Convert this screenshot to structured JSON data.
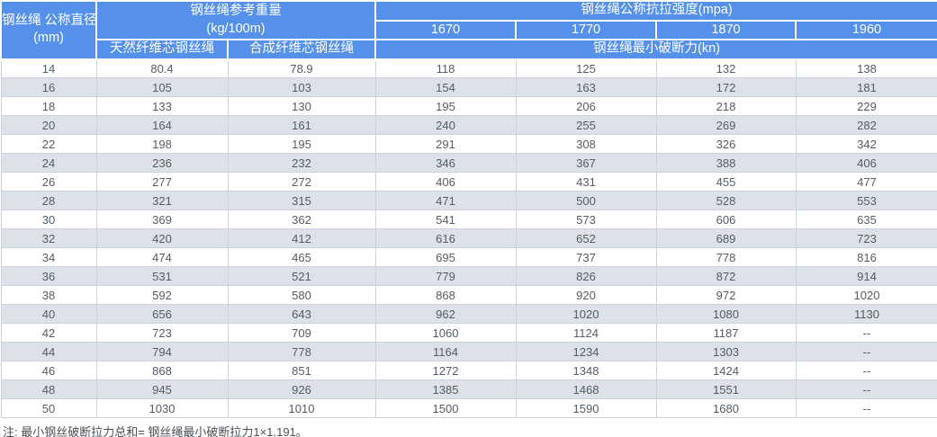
{
  "table": {
    "header": {
      "diameter_label": "钢丝绳 公称直径",
      "diameter_unit": "(mm)",
      "weight_group_label": "钢丝绳参考重量",
      "weight_group_unit": "(kg/100m)",
      "weight_cols": [
        "天然纤维芯钢丝绳",
        "合成纤维芯钢丝绳"
      ],
      "strength_group_label": "钢丝绳公称抗拉强度(mpa)",
      "strength_values": [
        "1670",
        "1770",
        "1870",
        "1960"
      ],
      "breaking_force_label": "钢丝绳最小破断力(kn)"
    },
    "columns": [
      "直径(mm)",
      "天然纤维芯钢丝绳(kg/100m)",
      "合成纤维芯钢丝绳(kg/100m)",
      "1670mpa最小破断力(kn)",
      "1770mpa最小破断力(kn)",
      "1870mpa最小破断力(kn)",
      "1960mpa最小破断力(kn)"
    ],
    "rows": [
      [
        "14",
        "80.4",
        "78.9",
        "118",
        "125",
        "132",
        "138"
      ],
      [
        "16",
        "105",
        "103",
        "154",
        "163",
        "172",
        "181"
      ],
      [
        "18",
        "133",
        "130",
        "195",
        "206",
        "218",
        "229"
      ],
      [
        "20",
        "164",
        "161",
        "240",
        "255",
        "269",
        "282"
      ],
      [
        "22",
        "198",
        "195",
        "291",
        "308",
        "326",
        "342"
      ],
      [
        "24",
        "236",
        "232",
        "346",
        "367",
        "388",
        "406"
      ],
      [
        "26",
        "277",
        "272",
        "406",
        "431",
        "455",
        "477"
      ],
      [
        "28",
        "321",
        "315",
        "471",
        "500",
        "528",
        "553"
      ],
      [
        "30",
        "369",
        "362",
        "541",
        "573",
        "606",
        "635"
      ],
      [
        "32",
        "420",
        "412",
        "616",
        "652",
        "689",
        "723"
      ],
      [
        "34",
        "474",
        "465",
        "695",
        "737",
        "778",
        "816"
      ],
      [
        "36",
        "531",
        "521",
        "779",
        "826",
        "872",
        "914"
      ],
      [
        "38",
        "592",
        "580",
        "868",
        "920",
        "972",
        "1020"
      ],
      [
        "40",
        "656",
        "643",
        "962",
        "1020",
        "1080",
        "1130"
      ],
      [
        "42",
        "723",
        "709",
        "1060",
        "1124",
        "1187",
        "--"
      ],
      [
        "44",
        "794",
        "778",
        "1164",
        "1234",
        "1303",
        "--"
      ],
      [
        "46",
        "868",
        "851",
        "1272",
        "1348",
        "1424",
        "--"
      ],
      [
        "48",
        "945",
        "926",
        "1385",
        "1468",
        "1551",
        "--"
      ],
      [
        "50",
        "1030",
        "1010",
        "1500",
        "1590",
        "1680",
        "--"
      ]
    ],
    "note": "注: 最小钢丝破断拉力总和= 钢丝绳最小破断拉力1×1.191。"
  },
  "colors": {
    "header_bg": "#5590ea",
    "stripe_bg": "#dde2ea",
    "row_bg": "#ffffff",
    "grid_border": "#ccd3dd",
    "header_text": "#ffffff",
    "body_text": "#565c64",
    "note_text": "#4a4f55"
  }
}
